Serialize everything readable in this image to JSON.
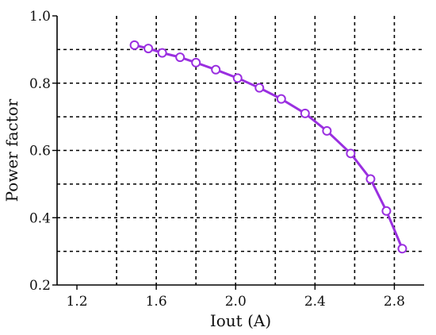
{
  "chart_data": {
    "type": "line",
    "xlabel": "Iout (A)",
    "ylabel": "Power factor",
    "xlim": [
      1.1,
      2.95
    ],
    "ylim": [
      0.2,
      1.0
    ],
    "x_ticks": [
      1.2,
      1.6,
      2.0,
      2.4,
      2.8
    ],
    "y_ticks": [
      0.2,
      0.4,
      0.6,
      0.8,
      1.0
    ],
    "x_tick_labels": [
      "1.2",
      "1.6",
      "2.0",
      "2.4",
      "2.8"
    ],
    "y_tick_labels": [
      "0.2",
      "0.4",
      "0.6",
      "0.8",
      "1.0"
    ],
    "x_grid": [
      1.4,
      1.6,
      1.8,
      2.0,
      2.2,
      2.4,
      2.6,
      2.8
    ],
    "y_grid": [
      0.3,
      0.4,
      0.5,
      0.6,
      0.7,
      0.8,
      0.9
    ],
    "grid": true,
    "grid_style": "dashed",
    "series": [
      {
        "color": "#9a2fe0",
        "marker": "hollow-circle",
        "x": [
          1.49,
          1.56,
          1.63,
          1.72,
          1.8,
          1.9,
          2.01,
          2.12,
          2.23,
          2.35,
          2.46,
          2.58,
          2.68,
          2.76,
          2.84
        ],
        "y": [
          0.913,
          0.903,
          0.89,
          0.877,
          0.861,
          0.84,
          0.815,
          0.786,
          0.753,
          0.71,
          0.658,
          0.591,
          0.515,
          0.42,
          0.308
        ]
      }
    ]
  }
}
